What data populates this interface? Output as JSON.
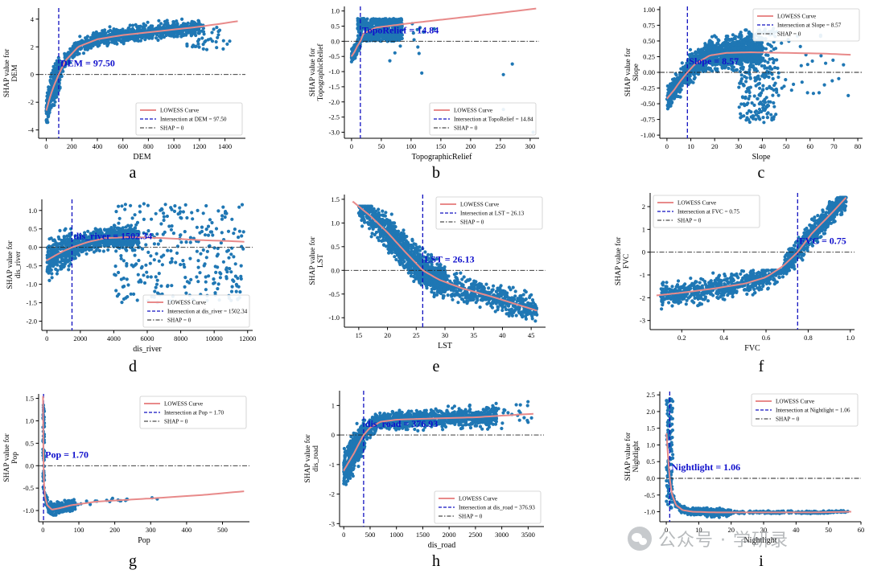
{
  "figure": {
    "watermark_text": "公众号 · 学研录"
  },
  "colors": {
    "points": "#1f77b4",
    "curve": "#e88a8a",
    "intersect": "#1010c0",
    "zero": "#222222",
    "annot": "#1010cc"
  },
  "chart_data": [
    {
      "type": "scatter",
      "letter": "a",
      "xlabel": "DEM",
      "ylabel": [
        "SHAP value for",
        "DEM"
      ],
      "xlim": [
        -60,
        1560
      ],
      "ylim": [
        -4.6,
        4.8
      ],
      "xticks": [
        "0",
        "200",
        "400",
        "600",
        "800",
        "1000",
        "1200",
        "1400"
      ],
      "xtick_values": [
        0,
        200,
        400,
        600,
        800,
        1000,
        1200,
        1400
      ],
      "yticks": [
        "-4",
        "-2",
        "0",
        "2",
        "4"
      ],
      "ytick_values": [
        -4,
        -2,
        0,
        2,
        4
      ],
      "intersection": 97.5,
      "annotation": "DEM = 97.50",
      "legend": [
        "LOWESS Curve",
        "Intersection at DEM = 97.50",
        "SHAP = 0"
      ],
      "lowess": {
        "x": [
          0,
          30,
          60,
          97.5,
          150,
          250,
          400,
          600,
          800,
          1000,
          1200,
          1500
        ],
        "y": [
          -2.6,
          -1.6,
          -0.8,
          0,
          1.0,
          2.0,
          2.55,
          2.85,
          3.05,
          3.25,
          3.45,
          3.85
        ]
      },
      "scatter": [
        {
          "x0": 0,
          "x1": 110,
          "ymin": -4.3,
          "ymax": 2.2,
          "track": 1,
          "spread": 1.1,
          "n": 330
        },
        {
          "x0": 100,
          "x1": 1200,
          "ymin": -0.5,
          "ymax": 4.4,
          "track": 1,
          "spread": 0.5,
          "n": 950
        },
        {
          "x0": 1100,
          "x1": 1460,
          "ymin": 1.8,
          "ymax": 3.6,
          "track": 0,
          "n": 40
        }
      ]
    },
    {
      "type": "scatter",
      "letter": "b",
      "xlabel": "TopographicRelief",
      "ylabel": [
        "SHAP value for",
        "TopographicRelief"
      ],
      "xlim": [
        -12,
        315
      ],
      "ylim": [
        -3.2,
        1.15
      ],
      "xticks": [
        "0",
        "50",
        "100",
        "150",
        "200",
        "250",
        "300"
      ],
      "xtick_values": [
        0,
        50,
        100,
        150,
        200,
        250,
        300
      ],
      "yticks": [
        "1.0",
        "0.5",
        "0.0",
        "-0.5",
        "-1.0",
        "-1.5",
        "-2.0",
        "-2.5",
        "-3.0"
      ],
      "ytick_values": [
        1.0,
        0.5,
        0.0,
        -0.5,
        -1.0,
        -1.5,
        -2.0,
        -2.5,
        -3.0
      ],
      "intersection": 14.84,
      "annotation": "TopoRelief = 14.84",
      "legend": [
        "LOWESS Curve",
        "Intersection at TopoRelief = 14.84",
        "SHAP = 0"
      ],
      "lowess": {
        "x": [
          0,
          5,
          10,
          14.84,
          20,
          40,
          100,
          200,
          310
        ],
        "y": [
          -0.5,
          -0.35,
          -0.15,
          0,
          0.25,
          0.45,
          0.6,
          0.82,
          1.08
        ]
      },
      "scatter": [
        {
          "x0": 0,
          "x1": 15,
          "ymin": -0.8,
          "ymax": 0.2,
          "track": 1,
          "spread": 0.2,
          "n": 170
        },
        {
          "x0": 10,
          "x1": 85,
          "ymin": 0.0,
          "ymax": 0.75,
          "track": 0,
          "n": 620
        },
        {
          "x0": 60,
          "x1": 140,
          "ymin": -0.7,
          "ymax": 0.6,
          "track": 0,
          "n": 14
        }
      ],
      "extra_points": [
        [
          255,
          -1.1
        ],
        [
          270,
          -0.75
        ],
        [
          255,
          -2.25
        ],
        [
          305,
          -3.0
        ],
        [
          118,
          -1.05
        ],
        [
          105,
          0.05
        ]
      ]
    },
    {
      "type": "scatter",
      "letter": "c",
      "xlabel": "Slope",
      "ylabel": [
        "SHAP value for",
        "Slope"
      ],
      "xlim": [
        -3,
        82
      ],
      "ylim": [
        -1.05,
        1.05
      ],
      "xticks": [
        "0",
        "10",
        "20",
        "30",
        "40",
        "50",
        "60",
        "70",
        "80"
      ],
      "xtick_values": [
        0,
        10,
        20,
        30,
        40,
        50,
        60,
        70,
        80
      ],
      "yticks": [
        "1.00",
        "0.75",
        "0.50",
        "0.25",
        "0.00",
        "-0.25",
        "-0.50",
        "-0.75",
        "-1.00"
      ],
      "ytick_values": [
        1.0,
        0.75,
        0.5,
        0.25,
        0.0,
        -0.25,
        -0.5,
        -0.75,
        -1.0
      ],
      "intersection": 8.57,
      "annotation": "Slope = 8.57",
      "legend": [
        "LOWESS Curve",
        "Intersection at Slope = 8.57",
        "SHAP = 0"
      ],
      "lowess": {
        "x": [
          0,
          3,
          6,
          8.57,
          12,
          18,
          25,
          35,
          50,
          65,
          77
        ],
        "y": [
          -0.42,
          -0.28,
          -0.12,
          0,
          0.14,
          0.27,
          0.31,
          0.32,
          0.31,
          0.3,
          0.28
        ]
      },
      "scatter": [
        {
          "x0": 0,
          "x1": 10,
          "ymin": -0.6,
          "ymax": 0.25,
          "track": 1,
          "spread": 0.18,
          "n": 300
        },
        {
          "x0": 9,
          "x1": 40,
          "ymin": -0.2,
          "ymax": 0.85,
          "track": 1,
          "spread": 0.22,
          "n": 1000
        },
        {
          "x0": 30,
          "x1": 46,
          "ymin": -0.8,
          "ymax": 0.7,
          "track": 0,
          "n": 260
        },
        {
          "x0": 46,
          "x1": 70,
          "ymin": -0.5,
          "ymax": 0.6,
          "track": 0,
          "n": 28
        }
      ],
      "extra_points": [
        [
          72,
          -0.1
        ],
        [
          76,
          -0.37
        ],
        [
          74,
          0.12
        ],
        [
          66,
          -0.2
        ]
      ]
    },
    {
      "type": "scatter",
      "letter": "d",
      "xlabel": "dis_river",
      "ylabel": [
        "SHAP value for",
        "dis_river"
      ],
      "xlim": [
        -300,
        12300
      ],
      "ylim": [
        -2.25,
        1.3
      ],
      "xticks": [
        "0",
        "2000",
        "4000",
        "6000",
        "8000",
        "10000",
        "12000"
      ],
      "xtick_values": [
        0,
        2000,
        4000,
        6000,
        8000,
        10000,
        12000
      ],
      "yticks": [
        "1.0",
        "0.5",
        "0.0",
        "-0.5",
        "-1.0",
        "-1.5",
        "-2.0"
      ],
      "ytick_values": [
        1.0,
        0.5,
        0.0,
        -0.5,
        -1.0,
        -1.5,
        -2.0
      ],
      "intersection": 1502.34,
      "annotation": "dis_river = 1502.34",
      "legend": [
        "LOWESS Curve",
        "Intersection at dis_river = 1502.34",
        "SHAP = 0"
      ],
      "lowess": {
        "x": [
          0,
          500,
          1000,
          1502.34,
          2500,
          3500,
          5000,
          7000,
          9000,
          11000,
          11800
        ],
        "y": [
          -0.35,
          -0.22,
          -0.1,
          0,
          0.15,
          0.25,
          0.28,
          0.25,
          0.2,
          0.17,
          0.15
        ]
      },
      "scatter": [
        {
          "x0": 0,
          "x1": 1500,
          "ymin": -2.1,
          "ymax": 0.5,
          "track": 1,
          "spread": 0.45,
          "n": 260
        },
        {
          "x0": 1500,
          "x1": 5500,
          "ymin": -0.5,
          "ymax": 0.8,
          "track": 1,
          "spread": 0.25,
          "n": 700
        },
        {
          "x0": 4000,
          "x1": 11800,
          "ymin": -1.5,
          "ymax": 1.2,
          "track": 0,
          "n": 300
        }
      ]
    },
    {
      "type": "scatter",
      "letter": "e",
      "xlabel": "LST",
      "ylabel": [
        "SHAP value for",
        "LST"
      ],
      "xlim": [
        12.5,
        47.5
      ],
      "ylim": [
        -1.2,
        1.6
      ],
      "xticks": [
        "15",
        "20",
        "25",
        "30",
        "35",
        "40",
        "45"
      ],
      "xtick_values": [
        15,
        20,
        25,
        30,
        35,
        40,
        45
      ],
      "yticks": [
        "1.5",
        "1.0",
        "0.5",
        "0.0",
        "-0.5",
        "-1.0"
      ],
      "ytick_values": [
        1.5,
        1.0,
        0.5,
        0.0,
        -0.5,
        -1.0
      ],
      "intersection": 26.13,
      "annotation": "LST = 26.13",
      "legend": [
        "LOWESS Curve",
        "Intersection at LST = 26.13",
        "SHAP = 0"
      ],
      "lowess": {
        "x": [
          14,
          17,
          20,
          23,
          26.13,
          29,
          33,
          38,
          42,
          46
        ],
        "y": [
          1.45,
          1.15,
          0.8,
          0.4,
          0,
          -0.2,
          -0.38,
          -0.55,
          -0.7,
          -0.85
        ]
      },
      "scatter": [
        {
          "x0": 15,
          "x1": 21,
          "ymin": -0.3,
          "ymax": 1.35,
          "track": 1,
          "spread": 0.32,
          "n": 280
        },
        {
          "x0": 20,
          "x1": 30,
          "ymin": -0.8,
          "ymax": 1.0,
          "track": 1,
          "spread": 0.32,
          "n": 900
        },
        {
          "x0": 28,
          "x1": 46,
          "ymin": -1.1,
          "ymax": 0.2,
          "track": 1,
          "spread": 0.25,
          "n": 520
        }
      ]
    },
    {
      "type": "scatter",
      "letter": "f",
      "xlabel": "FVC",
      "ylabel": [
        "SHAP value for",
        "FVC"
      ],
      "xlim": [
        0.05,
        1.02
      ],
      "ylim": [
        -3.4,
        2.6
      ],
      "xticks": [
        "0.2",
        "0.4",
        "0.6",
        "0.8",
        "1.0"
      ],
      "xtick_values": [
        0.2,
        0.4,
        0.6,
        0.8,
        1.0
      ],
      "yticks": [
        "2",
        "1",
        "0",
        "-1",
        "-2",
        "-3"
      ],
      "ytick_values": [
        2,
        1,
        0,
        -1,
        -2,
        -3
      ],
      "intersection": 0.75,
      "annotation": "FVC = 0.75",
      "legend": [
        "LOWESS Curve",
        "Intersection at FVC = 0.75",
        "SHAP = 0"
      ],
      "lowess": {
        "x": [
          0.08,
          0.2,
          0.35,
          0.5,
          0.6,
          0.68,
          0.75,
          0.82,
          0.9,
          0.98
        ],
        "y": [
          -1.9,
          -1.78,
          -1.6,
          -1.38,
          -1.1,
          -0.62,
          0,
          0.85,
          1.6,
          2.4
        ]
      },
      "scatter": [
        {
          "x0": 0.1,
          "x1": 0.7,
          "ymin": -3.0,
          "ymax": -0.8,
          "track": 1,
          "spread": 0.45,
          "n": 700
        },
        {
          "x0": 0.68,
          "x1": 0.98,
          "ymin": -2.0,
          "ymax": 2.4,
          "track": 1,
          "spread": 0.45,
          "n": 650
        }
      ]
    },
    {
      "type": "scatter",
      "letter": "g",
      "xlabel": "Pop",
      "ylabel": [
        "SHAP value for",
        "Pop"
      ],
      "xlim": [
        -12,
        575
      ],
      "ylim": [
        -1.25,
        1.6
      ],
      "xticks": [
        "0",
        "100",
        "200",
        "300",
        "400",
        "500"
      ],
      "xtick_values": [
        0,
        100,
        200,
        300,
        400,
        500
      ],
      "yticks": [
        "1.5",
        "1.0",
        "0.5",
        "0.0",
        "-0.5",
        "-1.0"
      ],
      "ytick_values": [
        1.5,
        1.0,
        0.5,
        0.0,
        -0.5,
        -1.0
      ],
      "intersection": 1.7,
      "annotation": "Pop = 1.70",
      "legend": [
        "LOWESS Curve",
        "Intersection at Pop = 1.70",
        "SHAP = 0"
      ],
      "lowess": {
        "x": [
          0.2,
          1,
          1.7,
          3,
          6,
          12,
          25,
          45,
          80,
          150,
          300,
          450,
          560
        ],
        "y": [
          1.55,
          0.55,
          0,
          -0.4,
          -0.7,
          -0.88,
          -0.98,
          -0.95,
          -0.88,
          -0.8,
          -0.73,
          -0.65,
          -0.57
        ]
      },
      "scatter": [
        {
          "x0": 0,
          "x1": 4,
          "ymin": -0.6,
          "ymax": 1.5,
          "track": 0,
          "n": 70
        },
        {
          "x0": 3,
          "x1": 90,
          "ymin": -1.1,
          "ymax": -0.6,
          "track": 1,
          "spread": 0.12,
          "n": 260
        },
        {
          "x0": 80,
          "x1": 320,
          "ymin": -0.9,
          "ymax": -0.6,
          "track": 1,
          "spread": 0.06,
          "n": 18
        }
      ]
    },
    {
      "type": "scatter",
      "letter": "h",
      "xlabel": "dis_road",
      "ylabel": [
        "SHAP value for",
        "dis_road"
      ],
      "xlim": [
        -80,
        3800
      ],
      "ylim": [
        -3.1,
        1.5
      ],
      "xticks": [
        "0",
        "500",
        "1000",
        "1500",
        "2000",
        "2500",
        "3000",
        "3500"
      ],
      "xtick_values": [
        0,
        500,
        1000,
        1500,
        2000,
        2500,
        3000,
        3500
      ],
      "yticks": [
        "1",
        "0",
        "-1",
        "-2",
        "-3"
      ],
      "ytick_values": [
        1,
        0,
        -1,
        -2,
        -3
      ],
      "intersection": 376.93,
      "annotation": "dis_road = 376.93",
      "legend": [
        "LOWESS Curve",
        "Intersection at dis_road = 376.93",
        "SHAP = 0"
      ],
      "lowess": {
        "x": [
          0,
          100,
          200,
          300,
          376.93,
          500,
          700,
          1000,
          1500,
          2500,
          3600
        ],
        "y": [
          -1.2,
          -0.9,
          -0.6,
          -0.25,
          0,
          0.25,
          0.45,
          0.52,
          0.55,
          0.6,
          0.72
        ]
      },
      "scatter": [
        {
          "x0": 0,
          "x1": 400,
          "ymin": -2.8,
          "ymax": 0.5,
          "track": 1,
          "spread": 0.55,
          "n": 420
        },
        {
          "x0": 400,
          "x1": 2900,
          "ymin": -0.6,
          "ymax": 1.3,
          "track": 1,
          "spread": 0.28,
          "n": 900
        },
        {
          "x0": 2500,
          "x1": 3600,
          "ymin": 0.1,
          "ymax": 1.2,
          "track": 0,
          "n": 25
        }
      ]
    },
    {
      "type": "scatter",
      "letter": "i",
      "xlabel": "Nightlight",
      "ylabel": [
        "SHAP value for",
        "Nightlight"
      ],
      "xlim": [
        -2,
        60
      ],
      "ylim": [
        -1.3,
        2.6
      ],
      "xticks": [
        "0",
        "10",
        "20",
        "30",
        "40",
        "50",
        "60"
      ],
      "xtick_values": [
        0,
        10,
        20,
        30,
        40,
        50,
        60
      ],
      "yticks": [
        "2.5",
        "2.0",
        "1.5",
        "1.0",
        "0.5",
        "0.0",
        "-0.5",
        "-1.0"
      ],
      "ytick_values": [
        2.5,
        2.0,
        1.5,
        1.0,
        0.5,
        0.0,
        -0.5,
        -1.0
      ],
      "intersection": 1.06,
      "annotation": "Nightlight = 1.06",
      "legend": [
        "LOWESS Curve",
        "Intersection at Nightlight = 1.06",
        "SHAP = 0"
      ],
      "lowess": {
        "x": [
          0.1,
          0.5,
          1.06,
          1.8,
          3,
          5,
          8,
          15,
          30,
          45,
          57
        ],
        "y": [
          1.35,
          0.7,
          0,
          -0.5,
          -0.8,
          -0.95,
          -1.0,
          -1.02,
          -1.02,
          -1.02,
          -1.0
        ]
      },
      "scatter": [
        {
          "x0": 0,
          "x1": 2,
          "ymin": -0.9,
          "ymax": 2.45,
          "track": 0,
          "n": 120
        },
        {
          "x0": 1.5,
          "x1": 20,
          "ymin": -1.2,
          "ymax": -0.5,
          "track": 1,
          "spread": 0.1,
          "n": 420
        },
        {
          "x0": 15,
          "x1": 56,
          "ymin": -1.1,
          "ymax": -0.9,
          "track": 1,
          "spread": 0.04,
          "n": 240
        }
      ]
    }
  ]
}
